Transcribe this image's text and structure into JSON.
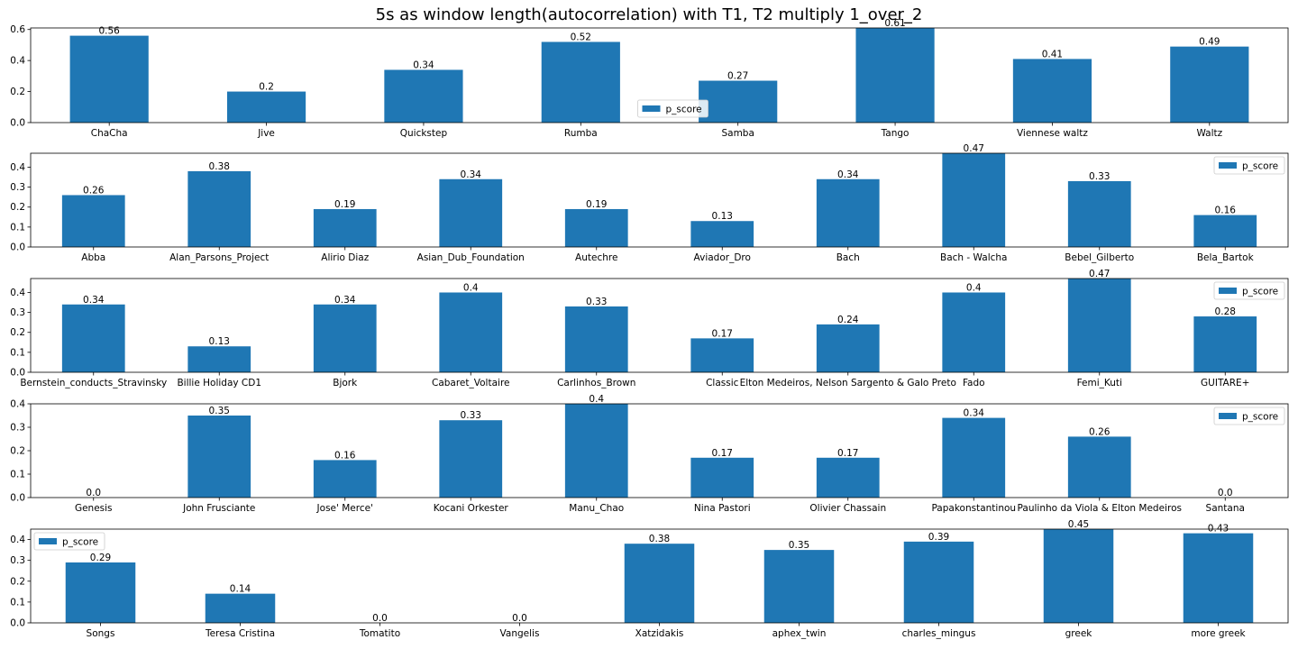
{
  "title": "5s as window length(autocorrelation) with T1, T2 multiply 1_over_2",
  "colors": {
    "bar": "#1f77b4",
    "axis": "#000000"
  },
  "chart_data": [
    {
      "type": "bar",
      "categories": [
        "ChaCha",
        "Jive",
        "Quickstep",
        "Rumba",
        "Samba",
        "Tango",
        "Viennese waltz",
        "Waltz"
      ],
      "series": [
        {
          "name": "p_score",
          "values": [
            0.56,
            0.2,
            0.34,
            0.52,
            0.27,
            0.61,
            0.41,
            0.49
          ]
        }
      ],
      "value_labels": [
        "0.56",
        "0.2",
        "0.34",
        "0.52",
        "0.27",
        "0.61",
        "0.41",
        "0.49"
      ],
      "ylim": [
        0,
        0.61
      ],
      "yticks": [
        0.0,
        0.2,
        0.4,
        0.6
      ],
      "ytick_labels": [
        "0.0",
        "0.2",
        "0.4",
        "0.6"
      ],
      "legend": "lower-center",
      "grid": false
    },
    {
      "type": "bar",
      "categories": [
        "Abba",
        "Alan_Parsons_Project",
        "Alirio Diaz",
        "Asian_Dub_Foundation",
        "Autechre",
        "Aviador_Dro",
        "Bach",
        "Bach - Walcha",
        "Bebel_Gilberto",
        "Bela_Bartok"
      ],
      "series": [
        {
          "name": "p_score",
          "values": [
            0.26,
            0.38,
            0.19,
            0.34,
            0.19,
            0.13,
            0.34,
            0.47,
            0.33,
            0.16
          ]
        }
      ],
      "value_labels": [
        "0.26",
        "0.38",
        "0.19",
        "0.34",
        "0.19",
        "0.13",
        "0.34",
        "0.47",
        "0.33",
        "0.16"
      ],
      "ylim": [
        0,
        0.47
      ],
      "yticks": [
        0.0,
        0.1,
        0.2,
        0.3,
        0.4
      ],
      "ytick_labels": [
        "0.0",
        "0.1",
        "0.2",
        "0.3",
        "0.4"
      ],
      "legend": "top-right",
      "grid": false
    },
    {
      "type": "bar",
      "categories": [
        "Bernstein_conducts_Stravinsky",
        "Billie Holiday CD1",
        "Bjork",
        "Cabaret_Voltaire",
        "Carlinhos_Brown",
        "Classic",
        "Elton Medeiros, Nelson Sargento & Galo Preto",
        "Fado",
        "Femi_Kuti",
        "GUITARE+"
      ],
      "series": [
        {
          "name": "p_score",
          "values": [
            0.34,
            0.13,
            0.34,
            0.4,
            0.33,
            0.17,
            0.24,
            0.4,
            0.47,
            0.28
          ]
        }
      ],
      "value_labels": [
        "0.34",
        "0.13",
        "0.34",
        "0.4",
        "0.33",
        "0.17",
        "0.24",
        "0.4",
        "0.47",
        "0.28"
      ],
      "ylim": [
        0,
        0.47
      ],
      "yticks": [
        0.0,
        0.1,
        0.2,
        0.3,
        0.4
      ],
      "ytick_labels": [
        "0.0",
        "0.1",
        "0.2",
        "0.3",
        "0.4"
      ],
      "legend": "top-right",
      "grid": false
    },
    {
      "type": "bar",
      "categories": [
        "Genesis",
        "John Frusciante",
        "Jose' Merce'",
        "Kocani Orkester",
        "Manu_Chao",
        "Nina Pastori",
        "Olivier Chassain",
        "Papakonstantinou",
        "Paulinho da Viola & Elton Medeiros",
        "Santana"
      ],
      "series": [
        {
          "name": "p_score",
          "values": [
            0.0,
            0.35,
            0.16,
            0.33,
            0.4,
            0.17,
            0.17,
            0.34,
            0.26,
            0.0
          ]
        }
      ],
      "value_labels": [
        "0.0",
        "0.35",
        "0.16",
        "0.33",
        "0.4",
        "0.17",
        "0.17",
        "0.34",
        "0.26",
        "0.0"
      ],
      "ylim": [
        0,
        0.4
      ],
      "yticks": [
        0.0,
        0.1,
        0.2,
        0.3,
        0.4
      ],
      "ytick_labels": [
        "0.0",
        "0.1",
        "0.2",
        "0.3",
        "0.4"
      ],
      "legend": "top-right",
      "grid": false
    },
    {
      "type": "bar",
      "categories": [
        "Songs",
        "Teresa Cristina",
        "Tomatito",
        "Vangelis",
        "Xatzidakis",
        "aphex_twin",
        "charles_mingus",
        "greek",
        "more greek"
      ],
      "series": [
        {
          "name": "p_score",
          "values": [
            0.29,
            0.14,
            0.0,
            0.0,
            0.38,
            0.35,
            0.39,
            0.45,
            0.43
          ]
        }
      ],
      "value_labels": [
        "0.29",
        "0.14",
        "0.0",
        "0.0",
        "0.38",
        "0.35",
        "0.39",
        "0.45",
        "0.43"
      ],
      "ylim": [
        0,
        0.45
      ],
      "yticks": [
        0.0,
        0.1,
        0.2,
        0.3,
        0.4
      ],
      "ytick_labels": [
        "0.0",
        "0.1",
        "0.2",
        "0.3",
        "0.4"
      ],
      "legend": "top-left",
      "grid": false
    }
  ]
}
